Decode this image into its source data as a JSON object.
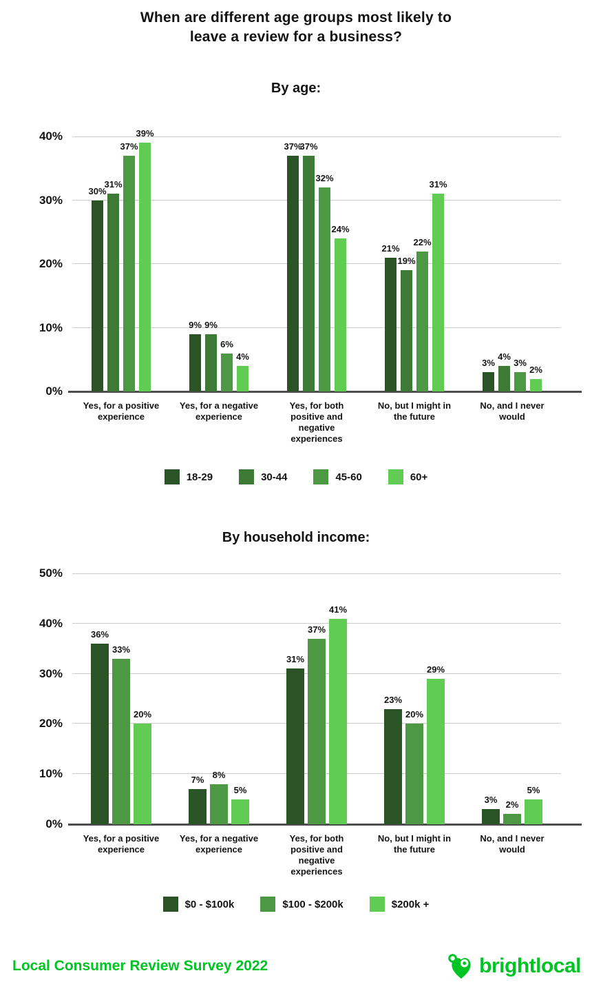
{
  "title": {
    "line1": "When are different age groups most likely to",
    "line2": "leave a review for a business?"
  },
  "colors": {
    "accent_green": "#00C424",
    "text": "#141414",
    "gridline": "#cbcbcb",
    "axis_line": "#4d4d4d"
  },
  "chart_data": [
    {
      "type": "bar",
      "title": "By age:",
      "categories": [
        "Yes, for a positive experience",
        "Yes, for a negative experience",
        "Yes, for both positive and negative experiences",
        "No, but I might in the future",
        "No, and I never would"
      ],
      "series": [
        {
          "name": "18-29",
          "values": [
            30,
            9,
            37,
            21,
            3
          ]
        },
        {
          "name": "30-44",
          "values": [
            31,
            9,
            37,
            19,
            4
          ]
        },
        {
          "name": "45-60",
          "values": [
            37,
            6,
            32,
            22,
            3
          ]
        },
        {
          "name": "60+",
          "values": [
            39,
            4,
            24,
            31,
            2
          ]
        }
      ],
      "colors": [
        "#2A5426",
        "#3D7A35",
        "#4D9843",
        "#61CC53"
      ],
      "ylim": [
        0,
        40
      ],
      "yticks": [
        "0%",
        "10%",
        "20%",
        "30%",
        "40%"
      ],
      "value_suffix": "%",
      "grid": true,
      "legend_position": "bottom"
    },
    {
      "type": "bar",
      "title": "By household income:",
      "categories": [
        "Yes, for a positive experience",
        "Yes, for a negative experience",
        "Yes, for both positive and negative experiences",
        "No, but I might in the future",
        "No, and I never would"
      ],
      "series": [
        {
          "name": "$0 - $100k",
          "values": [
            36,
            7,
            31,
            23,
            3
          ]
        },
        {
          "name": "$100 - $200k",
          "values": [
            33,
            8,
            37,
            20,
            2
          ]
        },
        {
          "name": "$200k +",
          "values": [
            20,
            5,
            41,
            29,
            5
          ]
        }
      ],
      "colors": [
        "#2A5426",
        "#4D9843",
        "#61CC53"
      ],
      "ylim": [
        0,
        50
      ],
      "yticks": [
        "0%",
        "10%",
        "20%",
        "30%",
        "40%",
        "50%"
      ],
      "value_suffix": "%",
      "grid": true,
      "legend_position": "bottom"
    }
  ],
  "footer": {
    "caption": "Local Consumer Review Survey 2022",
    "brand": "brightlocal",
    "brand_icon": "heart-map-pin-icon"
  }
}
